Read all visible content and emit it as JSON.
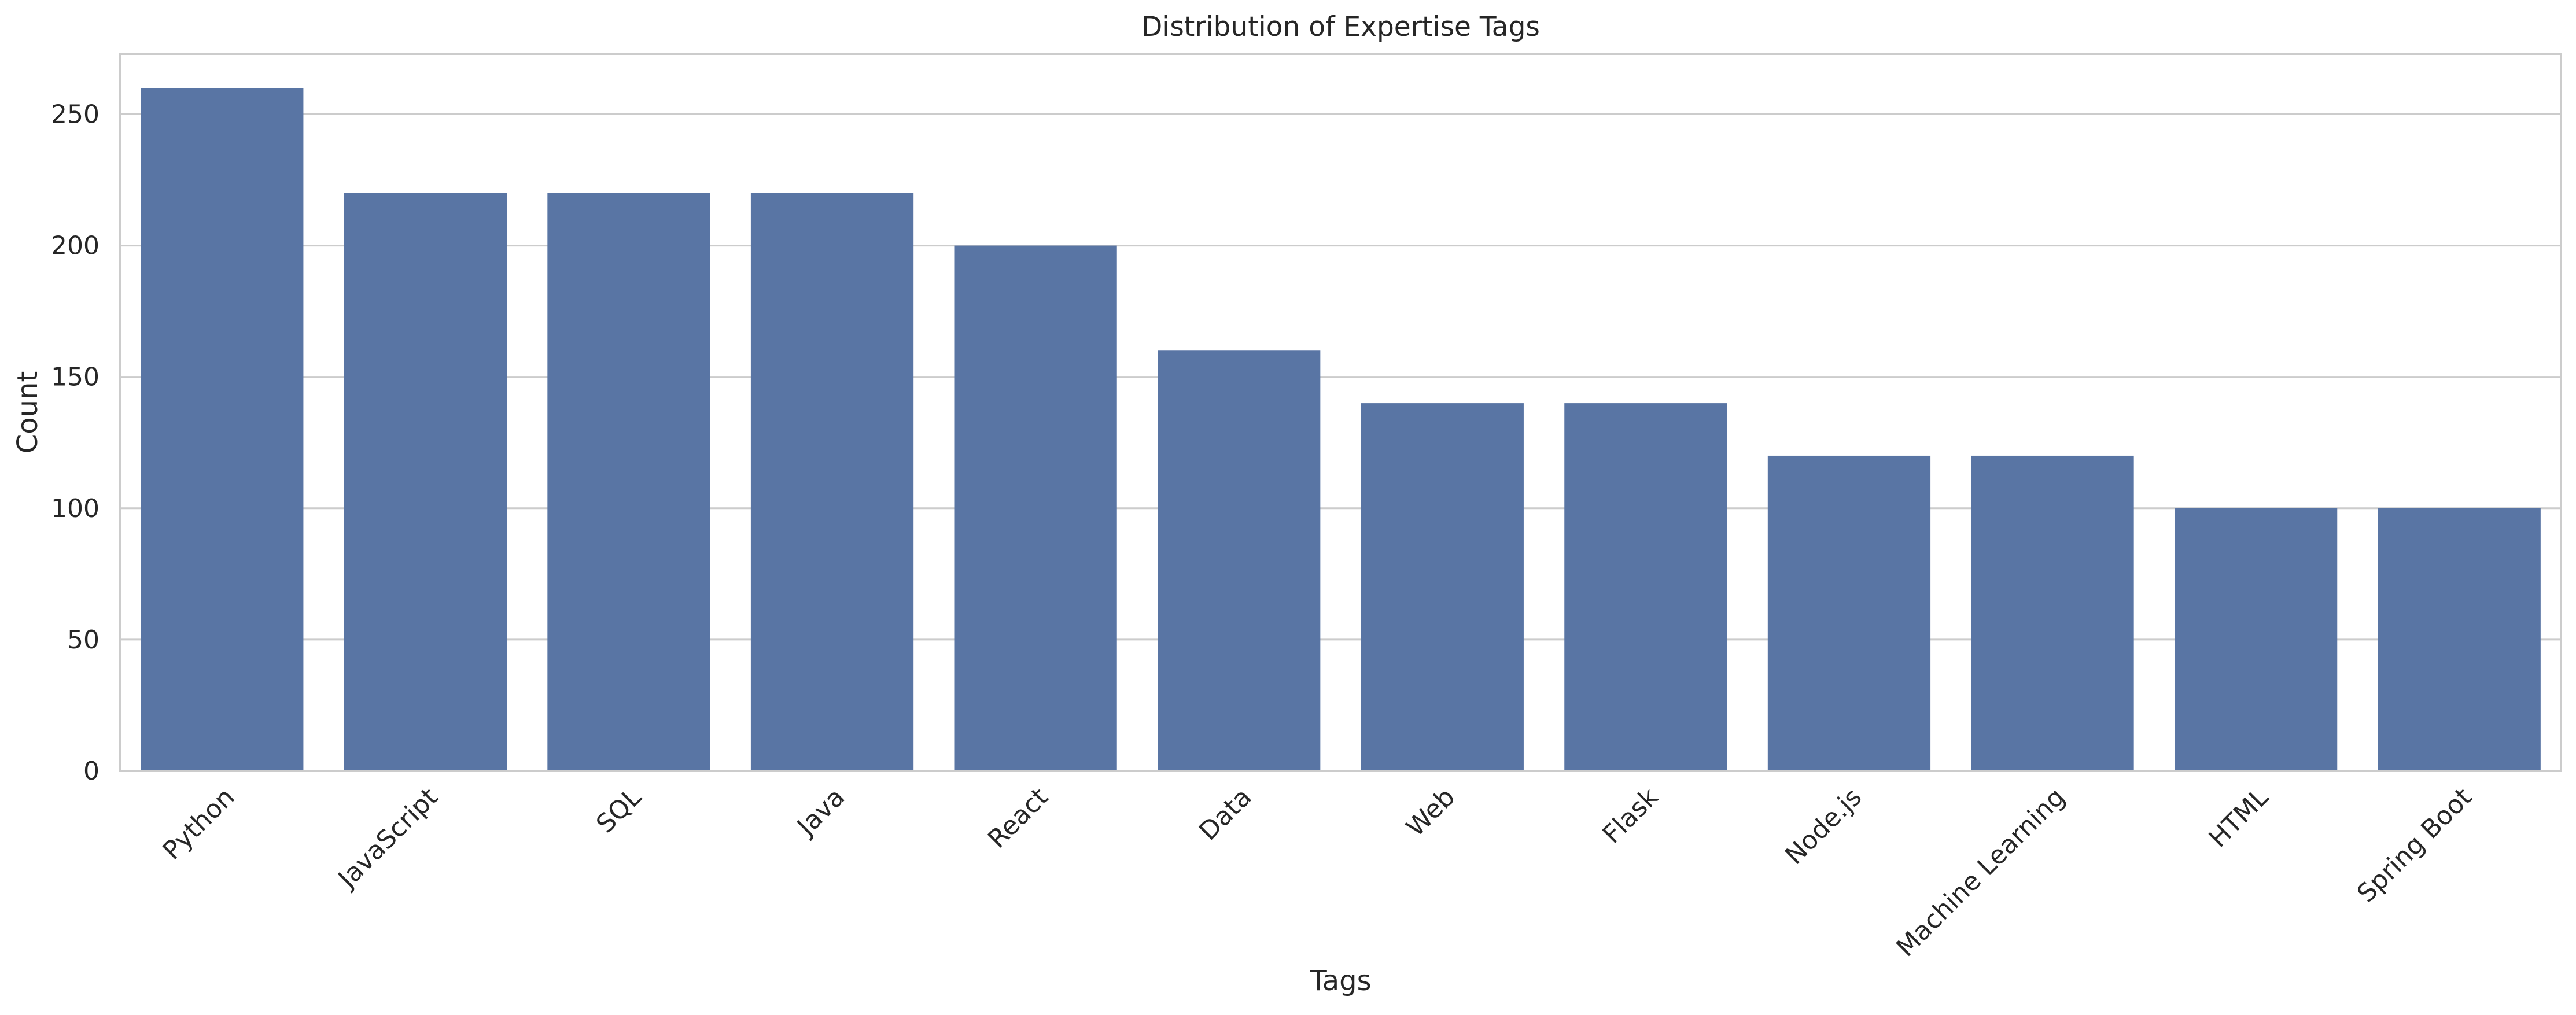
{
  "chart_data": {
    "type": "bar",
    "title": "Distribution of Expertise Tags",
    "xlabel": "Tags",
    "ylabel": "Count",
    "categories": [
      "Python",
      "JavaScript",
      "SQL",
      "Java",
      "React",
      "Data",
      "Web",
      "Flask",
      "Node.js",
      "Machine Learning",
      "HTML",
      "Spring Boot"
    ],
    "values": [
      260,
      220,
      220,
      220,
      200,
      160,
      140,
      140,
      120,
      120,
      100,
      100
    ],
    "ylim": [
      0,
      273
    ],
    "yticks": [
      0,
      50,
      100,
      150,
      200,
      250
    ],
    "grid": "horizontal",
    "legend": "none",
    "colors": {
      "bar": "#5975a4",
      "grid": "#cccccc",
      "axes_edge": "#cccccc",
      "text": "#262626"
    }
  }
}
